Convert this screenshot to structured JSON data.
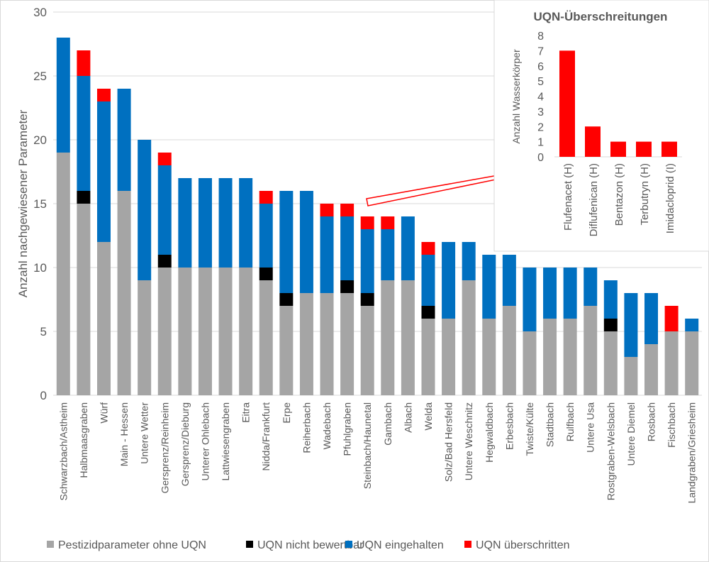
{
  "chart_data": [
    {
      "type": "bar",
      "stacked": true,
      "ylabel": "Anzahl nachgewiesener Parameter",
      "ylim": [
        0,
        30
      ],
      "yticks": [
        0,
        5,
        10,
        15,
        20,
        25,
        30
      ],
      "grid": true,
      "legend_position": "bottom",
      "categories": [
        "Schwarzbach/Astheim",
        "Halbmaasgraben",
        "Würf",
        "Main - Hessen",
        "Untere Wetter",
        "Gersprenz/Reinheim",
        "Gersprenz/Dieburg",
        "Unterer Ohlebach",
        "Lattwiesengraben",
        "Eitra",
        "Nidda/Frankfurt",
        "Erpe",
        "Reiherbach",
        "Wadebach",
        "Pfuhlgraben",
        "Steinbach/Haunetal",
        "Gambach",
        "Albach",
        "Welda",
        "Solz/Bad Hersfeld",
        "Untere Weschnitz",
        "Hegwaldbach",
        "Erbesbach",
        "Twiste/Külte",
        "Stadtbach",
        "Rulfbach",
        "Untere Usa",
        "Rostgraben-Welsbach",
        "Untere Diemel",
        "Rosbach",
        "Fischbach",
        "Landgraben/Griesheim"
      ],
      "series": [
        {
          "name": "Pestizidparameter ohne UQN",
          "color": "#a5a5a5",
          "values": [
            19,
            15,
            12,
            16,
            9,
            10,
            10,
            10,
            10,
            10,
            9,
            7,
            8,
            8,
            8,
            7,
            9,
            9,
            6,
            6,
            9,
            6,
            7,
            5,
            6,
            6,
            7,
            5,
            3,
            4,
            5,
            5
          ]
        },
        {
          "name": "UQN nicht bewertbar",
          "color": "#000000",
          "values": [
            0,
            1,
            0,
            0,
            0,
            1,
            0,
            0,
            0,
            0,
            1,
            1,
            0,
            0,
            1,
            1,
            0,
            0,
            1,
            0,
            0,
            0,
            0,
            0,
            0,
            0,
            0,
            1,
            0,
            0,
            0,
            0
          ]
        },
        {
          "name": "UQN eingehalten",
          "color": "#0070c0",
          "values": [
            9,
            9,
            11,
            8,
            11,
            7,
            7,
            7,
            7,
            7,
            5,
            8,
            8,
            6,
            5,
            5,
            4,
            5,
            4,
            6,
            3,
            5,
            4,
            5,
            4,
            4,
            3,
            3,
            5,
            4,
            0,
            1
          ]
        },
        {
          "name": "UQN überschritten",
          "color": "#ff0000",
          "values": [
            0,
            2,
            1,
            0,
            0,
            1,
            0,
            0,
            0,
            0,
            1,
            0,
            0,
            1,
            1,
            1,
            1,
            0,
            1,
            0,
            0,
            0,
            0,
            0,
            0,
            0,
            0,
            0,
            0,
            0,
            2,
            0
          ]
        }
      ]
    },
    {
      "type": "bar",
      "title": "UQN-Überschreitungen",
      "ylabel": "Anzahl Wasserkörper",
      "ylim": [
        0,
        8
      ],
      "yticks": [
        0,
        1,
        2,
        3,
        4,
        5,
        6,
        7,
        8
      ],
      "grid": false,
      "color": "#ff0000",
      "categories": [
        "Flufenacet (H)",
        "Diflufenican (H)",
        "Bentazon (H)",
        "Terbutryn (H)",
        "Imidacloprid (I)"
      ],
      "values": [
        7,
        2,
        1,
        1,
        1
      ]
    }
  ]
}
